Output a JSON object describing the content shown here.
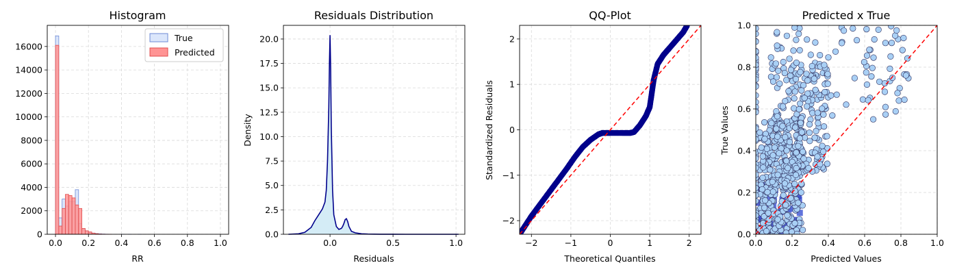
{
  "chart_data": [
    {
      "type": "bar",
      "title": "Histogram",
      "xlabel": "RR",
      "ylabel": "",
      "xlim": [
        -0.05,
        1.05
      ],
      "ylim": [
        0,
        17800
      ],
      "xticks": [
        "0.0",
        "0.2",
        "0.4",
        "0.6",
        "0.8",
        "1.0"
      ],
      "yticks": [
        "0",
        "2000",
        "4000",
        "6000",
        "8000",
        "10000",
        "12000",
        "14000",
        "16000"
      ],
      "grid": true,
      "legend": "top-right",
      "bin_width": 0.02,
      "bin_starts": [
        0.0,
        0.02,
        0.04,
        0.06,
        0.08,
        0.1,
        0.12,
        0.14,
        0.16,
        0.18,
        0.2,
        0.22,
        0.24,
        0.26,
        0.28,
        0.3,
        0.32,
        0.34,
        0.36,
        0.38,
        0.4,
        0.42,
        0.44,
        0.46,
        0.48,
        0.5
      ],
      "series": [
        {
          "name": "True",
          "color": "#dbe6fb",
          "edge": "#6c8ad6",
          "values": [
            16900,
            1400,
            3000,
            2400,
            2800,
            2800,
            3800,
            900,
            400,
            250,
            150,
            100,
            60,
            40,
            20,
            10,
            5,
            0,
            0,
            0,
            5,
            0,
            5,
            0,
            0,
            5
          ]
        },
        {
          "name": "Predicted",
          "color": "#ff9494",
          "edge": "#e04b4b",
          "values": [
            16100,
            700,
            2200,
            3400,
            3300,
            3100,
            2500,
            2200,
            500,
            300,
            200,
            100,
            50,
            20,
            10,
            5,
            5,
            0,
            0,
            0,
            0,
            0,
            0,
            0,
            0,
            0
          ]
        }
      ]
    },
    {
      "type": "area",
      "title": "Residuals Distribution",
      "xlabel": "Residuals",
      "ylabel": "Density",
      "xlim": [
        -0.37,
        1.07
      ],
      "ylim": [
        0,
        21.4
      ],
      "xticks": [
        "0.0",
        "0.5",
        "1.0"
      ],
      "yticks": [
        "0.0",
        "2.5",
        "5.0",
        "7.5",
        "10.0",
        "12.5",
        "15.0",
        "17.5",
        "20.0"
      ],
      "grid": true,
      "series": [
        {
          "name": "",
          "color": "#00008b",
          "fill": "#d4ecf6",
          "x": [
            -0.33,
            -0.25,
            -0.2,
            -0.15,
            -0.12,
            -0.1,
            -0.08,
            -0.06,
            -0.04,
            -0.03,
            -0.02,
            -0.01,
            -0.005,
            0.0,
            0.005,
            0.01,
            0.02,
            0.03,
            0.05,
            0.07,
            0.09,
            0.1,
            0.11,
            0.12,
            0.13,
            0.14,
            0.15,
            0.17,
            0.2,
            0.25,
            0.3,
            0.4,
            0.5,
            0.6,
            0.8,
            1.02
          ],
          "y": [
            0.0,
            0.05,
            0.2,
            0.7,
            1.4,
            1.8,
            2.2,
            2.6,
            3.3,
            4.5,
            7.5,
            13.0,
            17.5,
            20.4,
            17.0,
            11.0,
            4.5,
            2.0,
            0.8,
            0.5,
            0.6,
            0.8,
            1.1,
            1.5,
            1.6,
            1.3,
            0.8,
            0.3,
            0.15,
            0.05,
            0.02,
            0.01,
            0.01,
            0.0,
            0.0,
            0.0
          ]
        }
      ]
    },
    {
      "type": "scatter",
      "title": "QQ-Plot",
      "xlabel": "Theoretical Quantiles",
      "ylabel": "Standardized Residuals",
      "xlim": [
        -2.3,
        2.3
      ],
      "ylim": [
        -2.3,
        2.3
      ],
      "xticks": [
        "−2",
        "−1",
        "0",
        "1",
        "2"
      ],
      "yticks": [
        "−2",
        "−1",
        "0",
        "1",
        "2"
      ],
      "grid": true,
      "series": [
        {
          "name": "",
          "color": "#00008b",
          "x": [
            -2.3,
            -2.0,
            -1.7,
            -1.4,
            -1.1,
            -0.9,
            -0.7,
            -0.5,
            -0.3,
            -0.2,
            0.0,
            0.3,
            0.5,
            0.6,
            0.75,
            0.9,
            1.0,
            1.05,
            1.1,
            1.2,
            1.35,
            1.5,
            1.7,
            1.85,
            1.95
          ],
          "y": [
            -2.3,
            -1.9,
            -1.55,
            -1.2,
            -0.85,
            -0.6,
            -0.38,
            -0.22,
            -0.1,
            -0.07,
            -0.07,
            -0.07,
            -0.07,
            -0.05,
            0.1,
            0.3,
            0.5,
            0.8,
            1.1,
            1.45,
            1.65,
            1.8,
            2.0,
            2.15,
            2.3
          ]
        },
        {
          "name": "",
          "color": "#ff0000",
          "x": [
            -2.3,
            2.3
          ],
          "y": [
            -2.3,
            2.3
          ]
        }
      ]
    },
    {
      "type": "scatter",
      "title": "Predicted x True",
      "xlabel": "Predicted Values",
      "ylabel": "True Values",
      "xlim": [
        0.0,
        1.0
      ],
      "ylim": [
        0.0,
        1.0
      ],
      "xticks": [
        "0.0",
        "0.2",
        "0.4",
        "0.6",
        "0.8",
        "1.0"
      ],
      "yticks": [
        "0.0",
        "0.2",
        "0.4",
        "0.6",
        "0.8",
        "1.0"
      ],
      "grid": true,
      "colors": {
        "points": "#a9d0f5",
        "edge": "#2b2b5a",
        "hexbin": "#4f64d8",
        "hexbin_dense": "#3a4ec8",
        "hot": "#c4121b"
      },
      "series": [
        {
          "name": "",
          "color": "#ff0000",
          "x": [
            0.0,
            1.0
          ],
          "y": [
            0.0,
            1.0
          ]
        }
      ]
    }
  ],
  "legend_labels": [
    "True",
    "Predicted"
  ]
}
